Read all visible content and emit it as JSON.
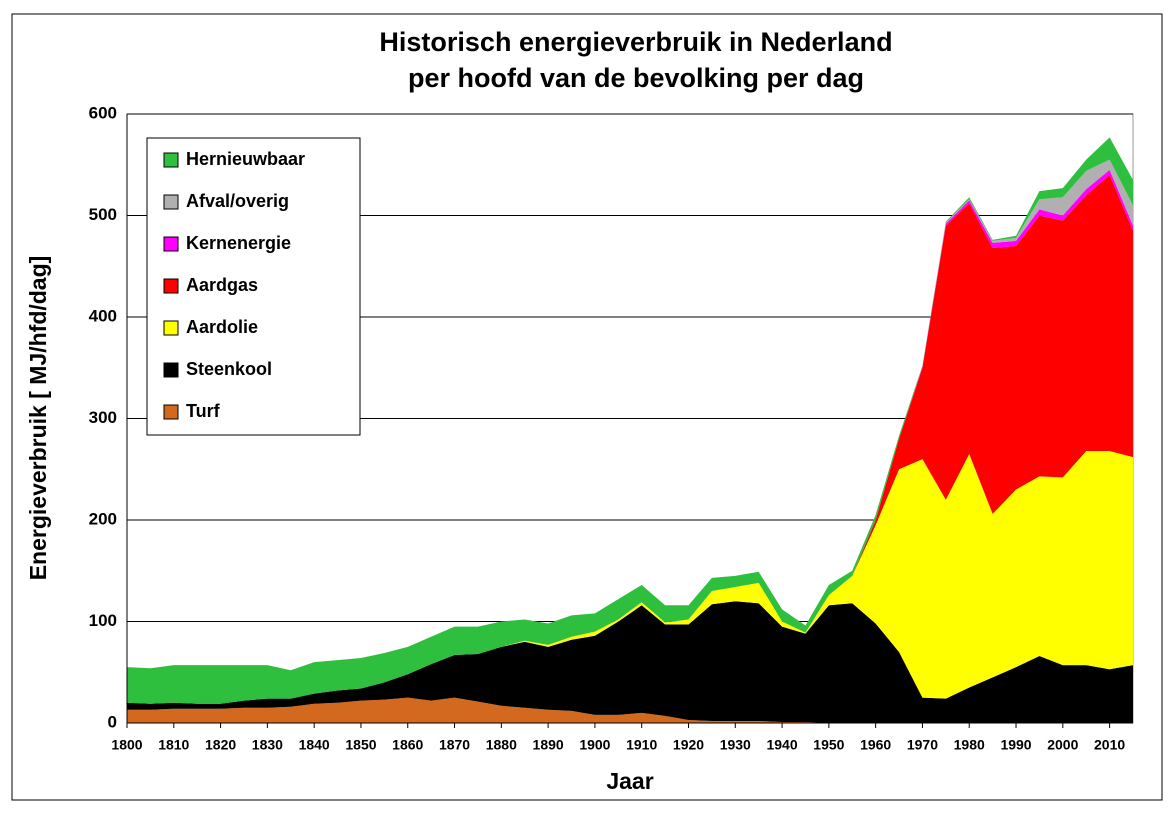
{
  "chart_data": {
    "type": "stacked_area",
    "title": [
      "Historisch energieverbruik in Nederland",
      "per hoofd van de bevolking per dag"
    ],
    "x_label": "Jaar",
    "y_label": "Energieverbruik [ MJ/hfd/dag]",
    "x": [
      1800,
      1805,
      1810,
      1815,
      1820,
      1825,
      1830,
      1835,
      1840,
      1845,
      1850,
      1855,
      1860,
      1865,
      1870,
      1875,
      1880,
      1885,
      1890,
      1895,
      1900,
      1905,
      1910,
      1915,
      1920,
      1925,
      1930,
      1935,
      1940,
      1945,
      1950,
      1955,
      1960,
      1965,
      1970,
      1975,
      1980,
      1985,
      1990,
      1995,
      2000,
      2005,
      2010,
      2015
    ],
    "series": [
      {
        "name": "Turf",
        "color": "#d2691e",
        "values": [
          13,
          13,
          14,
          14,
          14,
          15,
          15,
          16,
          19,
          20,
          22,
          23,
          25,
          22,
          25,
          21,
          17,
          15,
          13,
          12,
          8,
          8,
          10,
          7,
          3,
          2,
          2,
          2,
          1,
          1,
          0,
          0,
          0,
          0,
          0,
          0,
          0,
          0,
          0,
          0,
          0,
          0,
          0,
          0
        ]
      },
      {
        "name": "Steenkool",
        "color": "#000000",
        "values": [
          7,
          6,
          6,
          5,
          5,
          7,
          9,
          8,
          10,
          12,
          12,
          17,
          23,
          36,
          42,
          47,
          58,
          65,
          62,
          70,
          78,
          92,
          106,
          90,
          94,
          115,
          118,
          116,
          94,
          87,
          116,
          118,
          98,
          70,
          25,
          24,
          35,
          45,
          55,
          66,
          57,
          57,
          53,
          57
        ]
      },
      {
        "name": "Aardolie",
        "color": "#ffff00",
        "values": [
          0,
          0,
          0,
          0,
          0,
          0,
          0,
          0,
          0,
          0,
          0,
          0,
          0,
          0,
          0,
          0,
          0,
          1,
          2,
          3,
          4,
          2,
          3,
          2,
          5,
          13,
          14,
          20,
          5,
          1,
          10,
          27,
          97,
          180,
          235,
          196,
          230,
          161,
          175,
          177,
          185,
          211,
          215,
          205
        ]
      },
      {
        "name": "Aardgas",
        "color": "#ff0000",
        "values": [
          0,
          0,
          0,
          0,
          0,
          0,
          0,
          0,
          0,
          0,
          0,
          0,
          0,
          0,
          0,
          0,
          0,
          0,
          0,
          0,
          0,
          0,
          0,
          0,
          0,
          0,
          0,
          0,
          0,
          0,
          0,
          0,
          5,
          30,
          90,
          270,
          247,
          262,
          240,
          257,
          253,
          252,
          272,
          223
        ]
      },
      {
        "name": "Kernenergie",
        "color": "#ff00ff",
        "values": [
          0,
          0,
          0,
          0,
          0,
          0,
          0,
          0,
          0,
          0,
          0,
          0,
          0,
          0,
          0,
          0,
          0,
          0,
          0,
          0,
          0,
          0,
          0,
          0,
          0,
          0,
          0,
          0,
          0,
          0,
          0,
          0,
          0,
          0,
          1,
          2,
          3,
          5,
          5,
          6,
          5,
          6,
          5,
          5
        ]
      },
      {
        "name": "Afval/overig",
        "color": "#b0b0b0",
        "values": [
          0,
          0,
          0,
          0,
          0,
          0,
          0,
          0,
          0,
          0,
          0,
          0,
          0,
          0,
          0,
          0,
          0,
          0,
          0,
          0,
          0,
          0,
          0,
          0,
          0,
          0,
          0,
          0,
          0,
          0,
          0,
          0,
          0,
          0,
          0,
          1,
          1,
          2,
          3,
          10,
          18,
          18,
          10,
          20
        ]
      },
      {
        "name": "Hernieuwbaar",
        "color": "#2fbf3f",
        "values": [
          35,
          35,
          37,
          38,
          38,
          35,
          33,
          28,
          31,
          30,
          30,
          29,
          27,
          27,
          28,
          27,
          25,
          21,
          21,
          21,
          18,
          20,
          17,
          17,
          14,
          13,
          11,
          11,
          12,
          7,
          10,
          5,
          5,
          3,
          1,
          1,
          2,
          1,
          2,
          8,
          9,
          11,
          22,
          25
        ]
      }
    ],
    "xlim": [
      1800,
      2015
    ],
    "xticks": [
      1800,
      1810,
      1820,
      1830,
      1840,
      1850,
      1860,
      1870,
      1880,
      1890,
      1900,
      1910,
      1920,
      1930,
      1940,
      1950,
      1960,
      1970,
      1980,
      1990,
      2000,
      2010
    ],
    "ylim": [
      0,
      600
    ],
    "yticks": [
      0,
      100,
      200,
      300,
      400,
      500,
      600
    ],
    "grid": true,
    "legend": "upper left"
  }
}
